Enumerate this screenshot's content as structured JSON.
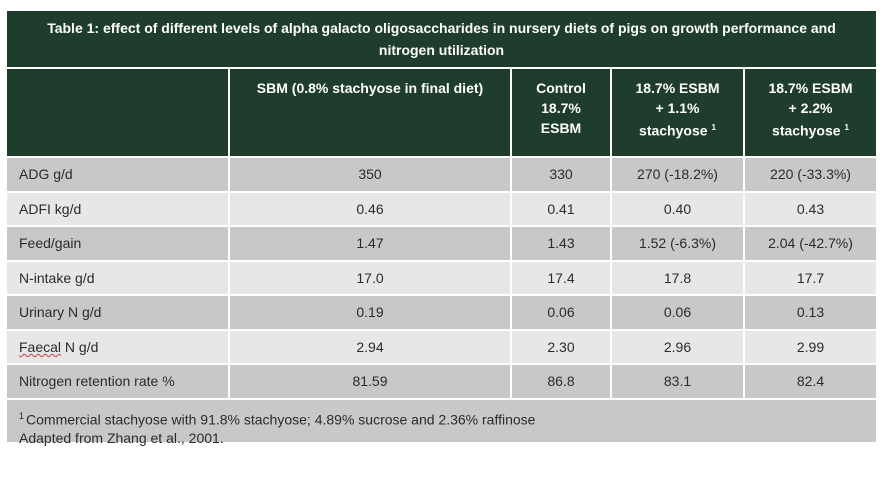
{
  "title": "Table 1: effect of different levels of alpha galacto oligosaccharides in nursery diets of pigs on growth performance and nitrogen utilization",
  "headers": {
    "col1": "SBM (0.8% stachyose in final diet)",
    "col2_l1": "Control",
    "col2_l2": "18.7%",
    "col2_l3": "ESBM",
    "col3_l1": "18.7% ESBM",
    "col3_l2": "+ 1.1%",
    "col3_l3": "stachyose",
    "col3_sup": "1",
    "col4_l1": "18.7% ESBM",
    "col4_l2": "+ 2.2%",
    "col4_l3": "stachyose",
    "col4_sup": "1"
  },
  "rows": [
    {
      "label": "ADG g/d",
      "v1": "350",
      "v2": "330",
      "v3": "270 (-18.2%)",
      "v4": "220 (-33.3%)"
    },
    {
      "label": "ADFI kg/d",
      "v1": "0.46",
      "v2": "0.41",
      "v3": "0.40",
      "v4": "0.43"
    },
    {
      "label": "Feed/gain",
      "v1": "1.47",
      "v2": "1.43",
      "v3": "1.52 (-6.3%)",
      "v4": "2.04 (-42.7%)"
    },
    {
      "label": "N-intake g/d",
      "v1": "17.0",
      "v2": "17.4",
      "v3": "17.8",
      "v4": "17.7"
    },
    {
      "label": "Urinary N g/d",
      "v1": "0.19",
      "v2": "0.06",
      "v3": "0.06",
      "v4": "0.13"
    },
    {
      "label_a": "Faecal",
      "label_b": " N g/d",
      "v1": "2.94",
      "v2": "2.30",
      "v3": "2.96",
      "v4": "2.99"
    },
    {
      "label": "Nitrogen retention rate %",
      "v1": "81.59",
      "v2": "86.8",
      "v3": "83.1",
      "v4": "82.4"
    }
  ],
  "footnote": {
    "sup": "1",
    "line1": "Commercial stachyose with 91.8% stachyose; 4.89% sucrose and 2.36% raffinose",
    "line2": "Adapted from Zhang et al., 2001."
  },
  "colors": {
    "header_bg": "#1f3d2c",
    "row_dark": "#c8c8c8",
    "row_light": "#e7e7e7"
  }
}
